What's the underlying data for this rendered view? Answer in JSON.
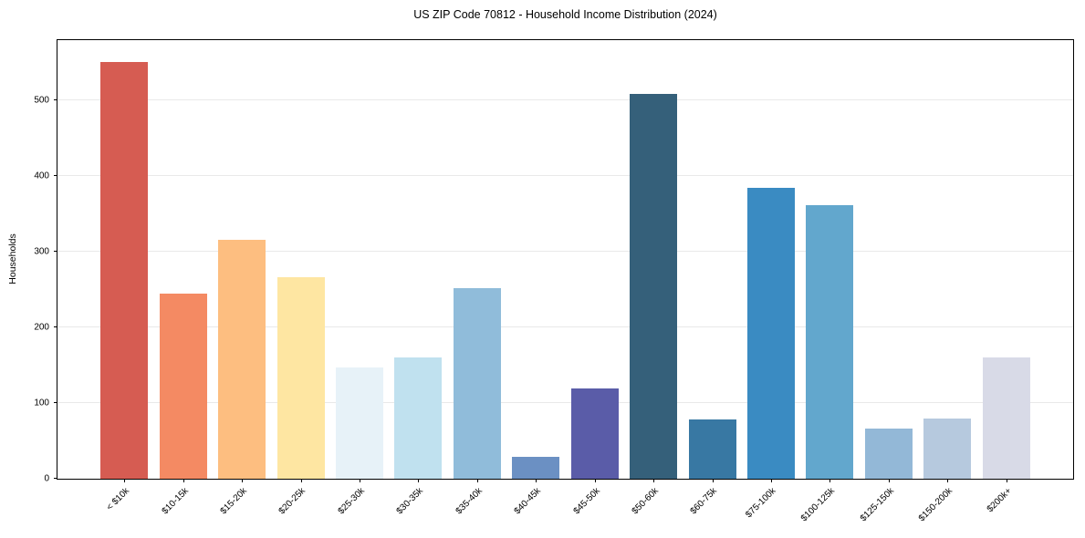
{
  "title": "US ZIP Code 70812 - Household Income Distribution (2024)",
  "chart_data": {
    "type": "bar",
    "title": "US ZIP Code 70812 - Household Income Distribution (2024)",
    "xlabel": "",
    "ylabel": "Households",
    "ylim": [
      0,
      580
    ],
    "yticks": [
      0,
      100,
      200,
      300,
      400,
      500
    ],
    "grid": "horizontal-only",
    "grid_color": "#e9e9e9",
    "legend": "none",
    "plot_border": "full-box-black",
    "xtick_rotation": 45,
    "categories": [
      "< $10k",
      "$10-15k",
      "$15-20k",
      "$20-25k",
      "$25-30k",
      "$30-35k",
      "$35-40k",
      "$40-45k",
      "$45-50k",
      "$50-60k",
      "$60-75k",
      "$75-100k",
      "$100-125k",
      "$125-150k",
      "$150-200k",
      "$200k+"
    ],
    "values": [
      551,
      245,
      316,
      267,
      147,
      160,
      252,
      29,
      119,
      509,
      78,
      385,
      362,
      66,
      80,
      160
    ],
    "bar_colors": [
      "#d65c52",
      "#f48a63",
      "#fdbe80",
      "#fee6a2",
      "#e7f2f8",
      "#c0e1ef",
      "#90bcda",
      "#6b90c3",
      "#5a5ca8",
      "#35607a",
      "#3878a3",
      "#3a8bc2",
      "#62a7cd",
      "#93b8d7",
      "#b6c9de",
      "#d8dae7"
    ]
  }
}
